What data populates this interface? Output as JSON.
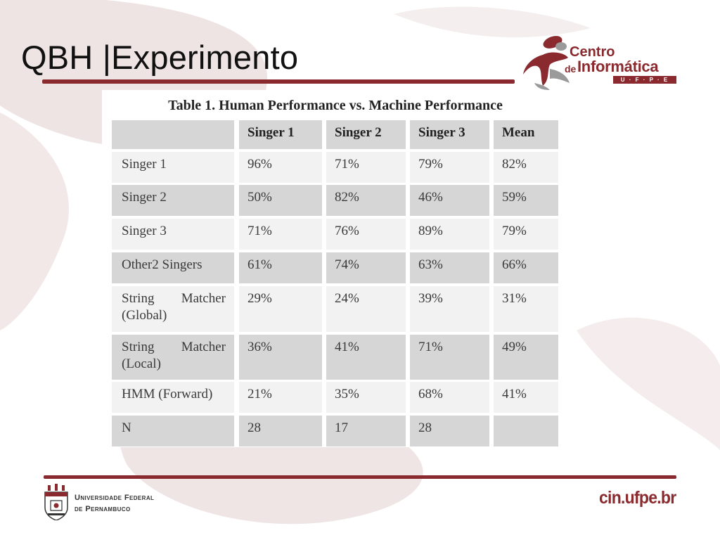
{
  "slide": {
    "title": "QBH |Experimento"
  },
  "logo": {
    "line1": "Centro",
    "line2_prefix": "de",
    "line2": "Informática",
    "tagline": "U · F · P · E"
  },
  "table": {
    "caption": "Table 1. Human Performance vs. Machine Performance",
    "columns": [
      "",
      "Singer 1",
      "Singer 2",
      "Singer 3",
      "Mean"
    ],
    "rows": [
      {
        "label": "Singer 1",
        "values": [
          "96%",
          "71%",
          "79%",
          "82%"
        ]
      },
      {
        "label": "Singer 2",
        "values": [
          "50%",
          "82%",
          "46%",
          "59%"
        ]
      },
      {
        "label": "Singer 3",
        "values": [
          "71%",
          "76%",
          "89%",
          "79%"
        ]
      },
      {
        "label": "Other2 Singers",
        "values": [
          "61%",
          "74%",
          "63%",
          "66%"
        ]
      },
      {
        "label_parts": [
          "String",
          "Matcher",
          "(Global)"
        ],
        "values": [
          "29%",
          "24%",
          "39%",
          "31%"
        ]
      },
      {
        "label_parts": [
          "String",
          "Matcher",
          "(Local)"
        ],
        "values": [
          "36%",
          "41%",
          "71%",
          "49%"
        ]
      },
      {
        "label": "HMM (Forward)",
        "values": [
          "21%",
          "35%",
          "68%",
          "41%"
        ]
      },
      {
        "label": "N",
        "values": [
          "28",
          "17",
          "28",
          ""
        ]
      }
    ]
  },
  "footer": {
    "university_line1": "Universidade Federal",
    "university_line2": "de Pernambuco",
    "url": "cin.ufpe.br"
  },
  "colors": {
    "accent": "#8a2a2e",
    "row_grey": "#d6d6d6",
    "row_light": "#f2f2f2"
  }
}
